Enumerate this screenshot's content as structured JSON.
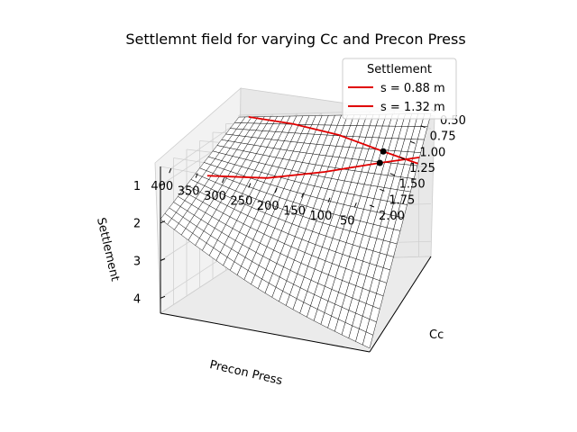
{
  "chart_data": {
    "type": "surface3d",
    "title": "Settlemnt field for varying Cc and Precon Press",
    "xlabel": "Precon Press",
    "ylabel": "Cc",
    "zlabel": "Settlement",
    "x_ticks": [
      "50",
      "100",
      "150",
      "200",
      "250",
      "300",
      "350",
      "400"
    ],
    "y_ticks": [
      "0.50",
      "0.75",
      "1.00",
      "1.25",
      "1.50",
      "1.75",
      "2.00"
    ],
    "z_ticks": [
      "1",
      "2",
      "3",
      "4"
    ],
    "xlim": [
      25,
      420
    ],
    "ylim": [
      0.5,
      2.0
    ],
    "zlim": [
      0.5,
      4.4
    ],
    "z_inverted": true,
    "grid": true,
    "surface_color": "#ffffff",
    "wire_color": "#000000",
    "surface": {
      "description": "settlement increases with Cc and decreases with preconsolidation pressure",
      "corner_values": [
        {
          "precon": 400,
          "cc": 0.5,
          "settlement": 0.55
        },
        {
          "precon": 25,
          "cc": 0.5,
          "settlement": 0.6
        },
        {
          "precon": 400,
          "cc": 2.0,
          "settlement": 1.9
        },
        {
          "precon": 25,
          "cc": 2.0,
          "settlement": 4.3
        }
      ]
    },
    "legend": {
      "title": "Settlement",
      "position": "upper right",
      "entries": [
        {
          "label": "s = 0.88 m",
          "color": "#e00000"
        },
        {
          "label": "s = 1.32 m",
          "color": "#e00000"
        }
      ]
    },
    "series": [
      {
        "name": "s = 0.88 m",
        "color": "#e00000",
        "points": [
          [
            400,
            0.5
          ],
          [
            300,
            0.58
          ],
          [
            200,
            0.66
          ],
          [
            100,
            0.76
          ],
          [
            25,
            0.82
          ]
        ]
      },
      {
        "name": "s = 1.32 m",
        "color": "#e00000",
        "points": [
          [
            400,
            1.3
          ],
          [
            300,
            1.12
          ],
          [
            200,
            0.96
          ],
          [
            100,
            0.84
          ],
          [
            25,
            0.78
          ]
        ]
      }
    ],
    "markers": [
      {
        "color": "#000000",
        "settlement": 0.88
      },
      {
        "color": "#000000",
        "settlement": 1.32
      }
    ]
  }
}
